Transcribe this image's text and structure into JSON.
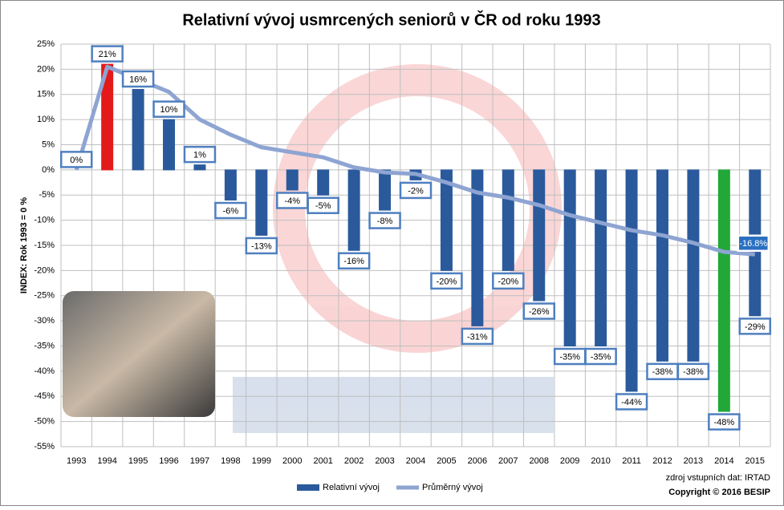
{
  "chart_data": {
    "type": "bar",
    "title": "Relativní vývoj usmrcených seniorů v ČR od roku 1993",
    "y_label": "INDEX: Rok 1993 = 0 %",
    "source": "zdroj vstupních dat: IRTAD",
    "copyright": "Copyright © 2016 BESIP",
    "categories": [
      "1993",
      "1994",
      "1995",
      "1996",
      "1997",
      "1998",
      "1999",
      "2000",
      "2001",
      "2002",
      "2003",
      "2004",
      "2005",
      "2006",
      "2007",
      "2008",
      "2009",
      "2010",
      "2011",
      "2012",
      "2013",
      "2014",
      "2015"
    ],
    "series": [
      {
        "name": "Relativní vývoj",
        "type": "bar",
        "color": "#2a5a9c",
        "colors": [
          "#2a5a9c",
          "#e41a1a",
          "#2a5a9c",
          "#2a5a9c",
          "#2a5a9c",
          "#2a5a9c",
          "#2a5a9c",
          "#2a5a9c",
          "#2a5a9c",
          "#2a5a9c",
          "#2a5a9c",
          "#2a5a9c",
          "#2a5a9c",
          "#2a5a9c",
          "#2a5a9c",
          "#2a5a9c",
          "#2a5a9c",
          "#2a5a9c",
          "#2a5a9c",
          "#2a5a9c",
          "#2a5a9c",
          "#21a838",
          "#2a5a9c"
        ],
        "values": [
          0,
          21,
          16,
          10,
          1,
          -6,
          -13,
          -4,
          -5,
          -16,
          -8,
          -2,
          -20,
          -31,
          -20,
          -26,
          -35,
          -35,
          -44,
          -38,
          -38,
          -48,
          -29
        ],
        "value_labels": [
          "0%",
          "21%",
          "16%",
          "10%",
          "1%",
          "-6%",
          "-13%",
          "-4%",
          "-5%",
          "-16%",
          "-8%",
          "-2%",
          "-20%",
          "-31%",
          "-20%",
          "-26%",
          "-35%",
          "-35%",
          "-44%",
          "-38%",
          "-38%",
          "-48%",
          "-29%"
        ]
      },
      {
        "name": "Průměrný vývoj",
        "type": "line",
        "color": "#8ea4d2",
        "values": [
          0,
          20.5,
          18,
          15.5,
          10,
          7,
          4.5,
          3.5,
          2.5,
          0.5,
          -0.5,
          -0.8,
          -2.5,
          -4.5,
          -5.5,
          -7,
          -9,
          -10.5,
          -12,
          -13,
          -14.5,
          -16.3,
          -16.8
        ],
        "value_labels": [
          null,
          null,
          null,
          null,
          null,
          null,
          null,
          null,
          null,
          null,
          null,
          null,
          null,
          null,
          null,
          null,
          null,
          null,
          null,
          null,
          null,
          null,
          "-16.8%"
        ]
      }
    ],
    "ylim": [
      -55,
      25
    ],
    "yticks": [
      {
        "value": 25,
        "label": "25%"
      },
      {
        "value": 20,
        "label": "20%"
      },
      {
        "value": 15,
        "label": "15%"
      },
      {
        "value": 10,
        "label": "10%"
      },
      {
        "value": 5,
        "label": "5%"
      },
      {
        "value": 0,
        "label": "0%"
      },
      {
        "value": -5,
        "label": "-5%"
      },
      {
        "value": -10,
        "label": "-10%"
      },
      {
        "value": -15,
        "label": "-15%"
      },
      {
        "value": -20,
        "label": "-20%"
      },
      {
        "value": -25,
        "label": "-25%"
      },
      {
        "value": -30,
        "label": "-30%"
      },
      {
        "value": -35,
        "label": "-35%"
      },
      {
        "value": -40,
        "label": "-40%"
      },
      {
        "value": -45,
        "label": "-45%"
      },
      {
        "value": -50,
        "label": "-50%"
      },
      {
        "value": -55,
        "label": "-55%"
      }
    ],
    "grid": true
  }
}
